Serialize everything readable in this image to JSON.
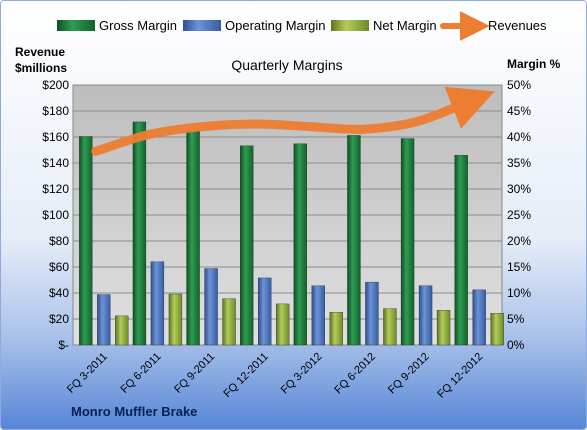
{
  "chart_data": {
    "type": "bar",
    "title": "Quarterly Margins",
    "source": "Monro Muffler Brake",
    "left_axis_label_line1": "Revenue",
    "left_axis_label_line2": "$millions",
    "right_axis_label": "Margin  %",
    "categories": [
      "FQ 3-2011",
      "FQ 6-2011",
      "FQ 9-2011",
      "FQ 12-2011",
      "FQ 3-2012",
      "FQ 6-2012",
      "FQ 9-2012",
      "FQ 12-2012"
    ],
    "left_axis": {
      "min": 0,
      "max": 200,
      "step": 20,
      "tick_labels": [
        "$-",
        "$20",
        "$40",
        "$60",
        "$80",
        "$100",
        "$120",
        "$140",
        "$160",
        "$180",
        "$200"
      ]
    },
    "right_axis": {
      "min": 0,
      "max": 50,
      "step": 5,
      "tick_labels": [
        "0%",
        "5%",
        "10%",
        "15%",
        "20%",
        "25%",
        "30%",
        "35%",
        "40%",
        "45%",
        "50%"
      ]
    },
    "series": [
      {
        "name": "Gross Margin",
        "axis": "right",
        "color": "#1f7a3c",
        "values": [
          40.1,
          42.9,
          41.2,
          38.3,
          38.7,
          40.3,
          39.7,
          36.5
        ]
      },
      {
        "name": "Operating Margin",
        "axis": "right",
        "color": "#4472c4",
        "values": [
          9.7,
          16.0,
          14.7,
          12.9,
          11.4,
          12.1,
          11.4,
          10.6
        ]
      },
      {
        "name": "Net Margin",
        "axis": "right",
        "color": "#8ca53a",
        "values": [
          5.6,
          9.8,
          8.9,
          7.9,
          6.3,
          7.0,
          6.7,
          6.1
        ]
      },
      {
        "name": "Revenues",
        "axis": "left",
        "type": "line",
        "color": "#ed7d31",
        "values": [
          149,
          162,
          168,
          170,
          168,
          166,
          172,
          188
        ]
      }
    ],
    "legend_position": "top",
    "grid": true
  }
}
